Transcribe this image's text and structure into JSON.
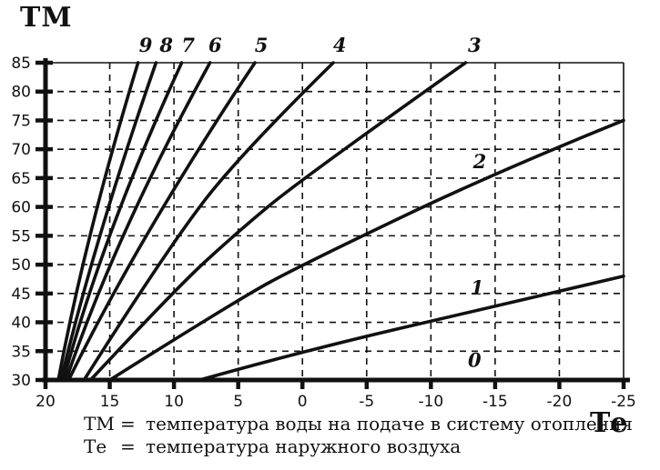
{
  "page": {
    "background": "#ffffff",
    "ink": "#111111"
  },
  "titles": {
    "y_axis": "ТМ",
    "x_axis": "Те"
  },
  "legend": {
    "rows": [
      {
        "term": "ТМ",
        "eq": "=",
        "definition": "температура воды на подаче в систему отопления"
      },
      {
        "term": "Те",
        "eq": "=",
        "definition": "температура наружного воздуха"
      }
    ]
  },
  "chart_data": {
    "type": "line",
    "title": "",
    "xlabel": "Те",
    "ylabel": "ТМ",
    "x_axis": {
      "label": "Те",
      "min": 20,
      "max": -25,
      "reversed": true,
      "ticks": [
        20,
        15,
        10,
        5,
        0,
        -5,
        -10,
        -15,
        -20,
        -25
      ]
    },
    "y_axis": {
      "label": "ТМ",
      "min": 30,
      "max": 85,
      "ticks": [
        30,
        35,
        40,
        45,
        50,
        55,
        60,
        65,
        70,
        75,
        80,
        85
      ]
    },
    "grid": "dashed",
    "legend_position": "below",
    "series": [
      {
        "name": "0",
        "points": [
          [
            20,
            30
          ],
          [
            -25,
            30
          ]
        ],
        "label_pos": [
          -13.4,
          33.4
        ]
      },
      {
        "name": "1",
        "points": [
          [
            8,
            30
          ],
          [
            0,
            35
          ],
          [
            -15,
            42.8
          ],
          [
            -25,
            48
          ]
        ],
        "label_pos": [
          -13.6,
          45.9
        ]
      },
      {
        "name": "2",
        "points": [
          [
            15,
            30
          ],
          [
            5,
            44
          ],
          [
            0,
            50
          ],
          [
            -15,
            66
          ],
          [
            -25,
            75
          ]
        ],
        "label_pos": [
          -13.8,
          67.8
        ]
      },
      {
        "name": "3",
        "points": [
          [
            16.5,
            30
          ],
          [
            10,
            45.5
          ],
          [
            5.4,
            55
          ],
          [
            0,
            65
          ],
          [
            -12.7,
            85
          ]
        ],
        "label_pos": [
          -13.4,
          88
        ]
      },
      {
        "name": "4",
        "points": [
          [
            17,
            30
          ],
          [
            9.9,
            55
          ],
          [
            4,
            71
          ],
          [
            -2.4,
            85
          ]
        ],
        "label_pos": [
          -2.9,
          88
        ]
      },
      {
        "name": "5",
        "points": [
          [
            18.2,
            30
          ],
          [
            12.7,
            55
          ],
          [
            3.7,
            85
          ]
        ],
        "label_pos": [
          3.2,
          88
        ]
      },
      {
        "name": "6",
        "points": [
          [
            18.4,
            30
          ],
          [
            14.6,
            55
          ],
          [
            7.2,
            85
          ]
        ],
        "label_pos": [
          6.8,
          88
        ]
      },
      {
        "name": "7",
        "points": [
          [
            18.6,
            30
          ],
          [
            15.6,
            55
          ],
          [
            9.4,
            85
          ]
        ],
        "label_pos": [
          8.9,
          88
        ]
      },
      {
        "name": "8",
        "points": [
          [
            18.8,
            30
          ],
          [
            16.1,
            55
          ],
          [
            11.4,
            85
          ]
        ],
        "label_pos": [
          10.6,
          88
        ]
      },
      {
        "name": "9",
        "points": [
          [
            19,
            30
          ],
          [
            16.9,
            55
          ],
          [
            12.8,
            85
          ]
        ],
        "label_pos": [
          12.2,
          88
        ]
      }
    ]
  }
}
